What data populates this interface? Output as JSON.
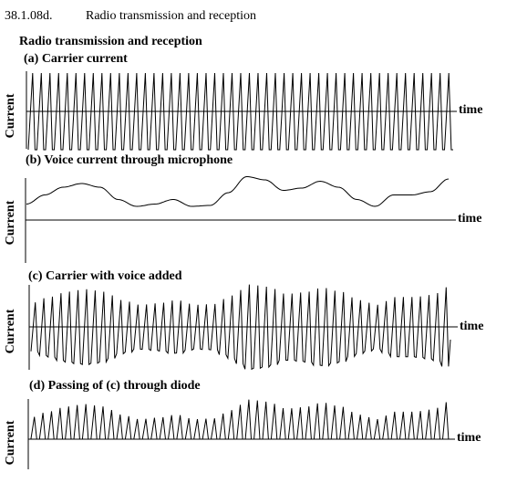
{
  "header": {
    "code": "38.1.08d.",
    "title": "Radio transmission and reception"
  },
  "figure": {
    "title": "Radio transmission and reception"
  },
  "panels": [
    {
      "id": "a",
      "title": "(a) Carrier current",
      "ylabel": "Current",
      "xlabel": "time"
    },
    {
      "id": "b",
      "title": "(b) Voice current through microphone",
      "ylabel": "Current",
      "xlabel": "time"
    },
    {
      "id": "c",
      "title": "(c) Carrier with voice added",
      "ylabel": "Current",
      "xlabel": "time"
    },
    {
      "id": "d",
      "title": "(d) Passing of (c) through diode",
      "ylabel": "Current",
      "xlabel": "time"
    }
  ],
  "chart_data": {
    "type": "line",
    "carrier_cycles": 49,
    "voice_envelope": [
      0.35,
      0.55,
      0.72,
      0.8,
      0.72,
      0.45,
      0.3,
      0.35,
      0.45,
      0.3,
      0.32,
      0.6,
      0.95,
      0.88,
      0.65,
      0.7,
      0.85,
      0.72,
      0.45,
      0.3,
      0.55,
      0.55,
      0.62,
      0.9
    ],
    "colors": {
      "ink": "#000000",
      "background": "#ffffff"
    }
  }
}
